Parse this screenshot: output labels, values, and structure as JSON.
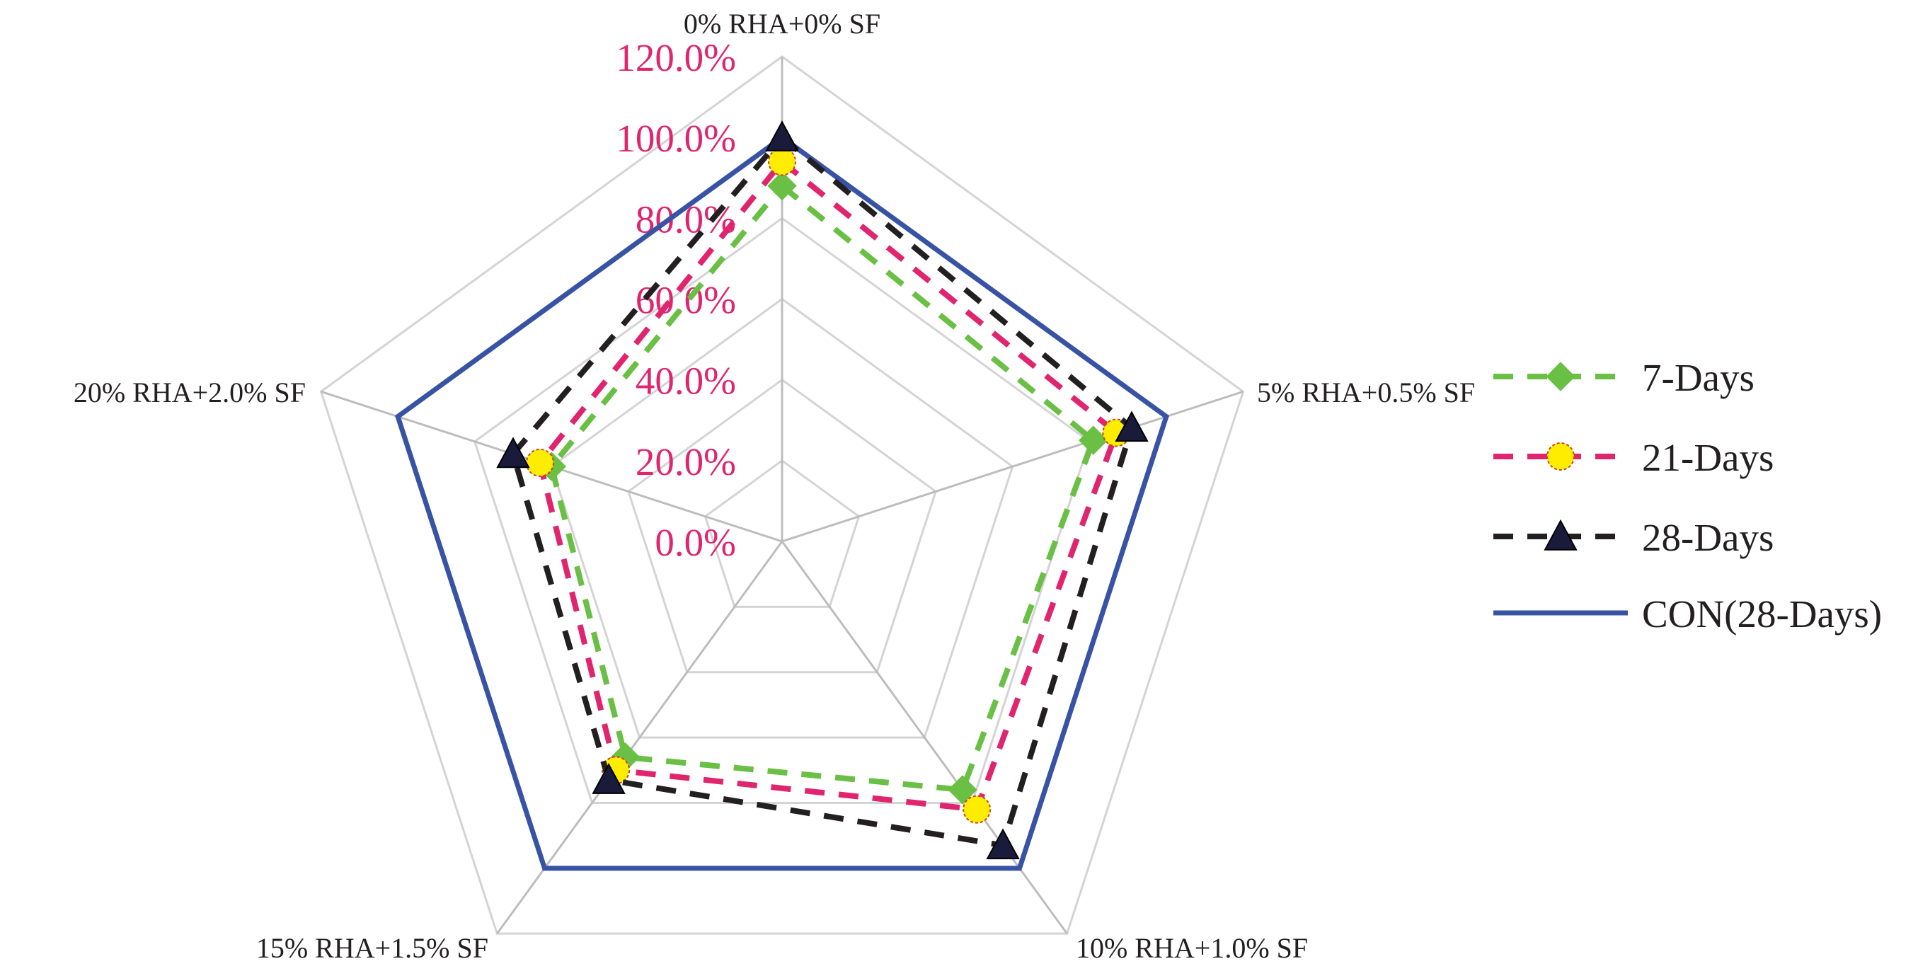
{
  "chart_data": {
    "type": "radar",
    "categories": [
      "0% RHA+0% SF",
      "5% RHA+0.5% SF",
      "10% RHA+1.0% SF",
      "15% RHA+1.5% SF",
      "20% RHA+2.0% SF"
    ],
    "rlim": [
      0,
      120
    ],
    "tick_values": [
      0,
      20,
      40,
      60,
      80,
      100,
      120
    ],
    "tick_labels": [
      "0.0%",
      "20.0%",
      "40.0%",
      "60.0%",
      "80.0%",
      "100.0%",
      "120.0%"
    ],
    "grid": true,
    "legend_position": "right",
    "series": [
      {
        "name": "7-Days",
        "values": [
          88,
          81,
          76,
          66,
          60
        ],
        "color": "#6abf45",
        "dash": "dashed",
        "marker": "diamond"
      },
      {
        "name": "21-Days",
        "values": [
          94,
          87,
          82,
          70,
          63
        ],
        "color": "#e0246e",
        "dash": "dashed",
        "marker": "circle",
        "marker_fill": "#ffed00"
      },
      {
        "name": "28-Days",
        "values": [
          100,
          91,
          93,
          73,
          70
        ],
        "color": "#231f20",
        "dash": "dashed",
        "marker": "triangle",
        "marker_fill": "#1a1a3a"
      },
      {
        "name": "CON(28-Days)",
        "values": [
          100,
          100,
          100,
          100,
          100
        ],
        "color": "#3953a4",
        "dash": "solid",
        "marker": "none"
      }
    ]
  }
}
